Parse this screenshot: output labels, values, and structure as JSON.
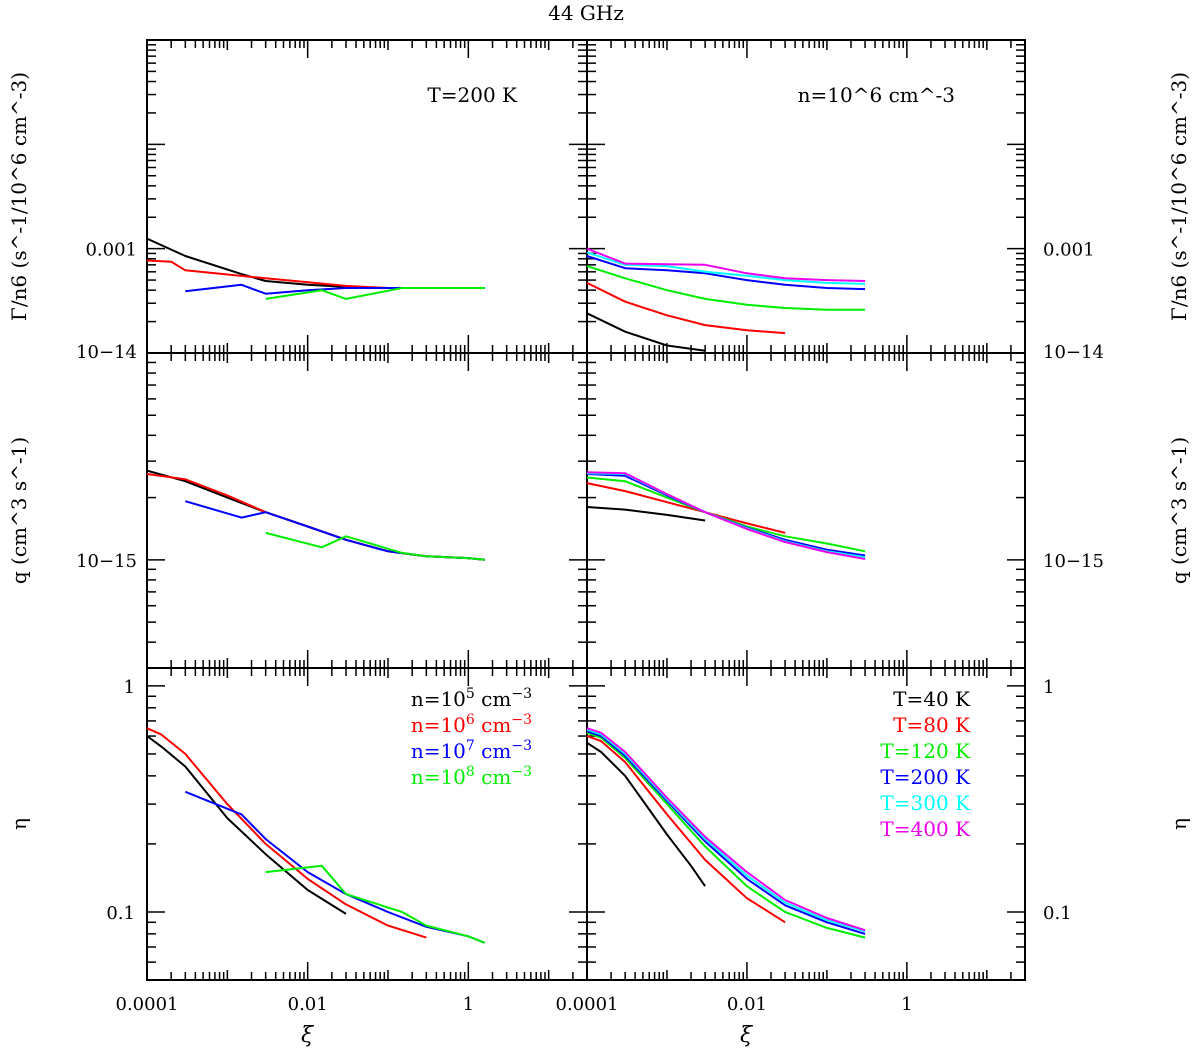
{
  "figure_title": "44 GHz",
  "chart_data": [
    {
      "type": "line",
      "panel": "top-left",
      "annotation": "T=200 K",
      "ylabel": "Γ/n6 (s^-1/10^6 cm^-3)",
      "ytick_labels": [
        "0.001",
        "10−14"
      ],
      "yscale": "log",
      "xscale": "log",
      "xlim": [
        0.0001,
        30
      ],
      "ylim": [
        0.0001,
        0.1
      ],
      "series": [
        {
          "name": "n=10^5 cm^-3",
          "color": "#000000",
          "x": [
            0.0001,
            0.0003,
            0.0015,
            0.003,
            0.01,
            0.03,
            0.1,
            0.3,
            1,
            1.6
          ],
          "y": [
            0.00125,
            0.00085,
            0.00057,
            0.00049,
            0.00045,
            0.00043,
            0.00042,
            0.00042,
            0.00042,
            0.00042
          ]
        },
        {
          "name": "n=10^6 cm^-3",
          "color": "#ff0000",
          "x": [
            0.0001,
            0.0002,
            0.0003,
            0.003,
            0.03,
            0.1,
            1,
            1.6
          ],
          "y": [
            0.00077,
            0.00075,
            0.00062,
            0.00052,
            0.00044,
            0.00042,
            0.00042,
            0.00042
          ]
        },
        {
          "name": "n=10^7 cm^-3",
          "color": "#0000ff",
          "x": [
            0.0003,
            0.0015,
            0.003,
            0.01,
            0.03,
            0.1,
            0.3,
            1,
            1.6
          ],
          "y": [
            0.00039,
            0.00045,
            0.00037,
            0.0004,
            0.00042,
            0.00042,
            0.00042,
            0.00042,
            0.00042
          ]
        },
        {
          "name": "n=10^8 cm^-3",
          "color": "#00ee00",
          "x": [
            0.003,
            0.015,
            0.03,
            0.15,
            0.3,
            1,
            1.6
          ],
          "y": [
            0.00033,
            0.0004,
            0.00033,
            0.00042,
            0.00042,
            0.00042,
            0.00042
          ]
        }
      ]
    },
    {
      "type": "line",
      "panel": "top-right",
      "annotation": "n=10^6 cm^-3",
      "ylabel": "Γ/n6 (s^-1/10^6 cm^-3)",
      "ytick_labels": [
        "0.001",
        "10−14"
      ],
      "yscale": "log",
      "xscale": "log",
      "xlim": [
        0.0001,
        30
      ],
      "ylim": [
        0.0001,
        0.1
      ],
      "series": [
        {
          "name": "T=40 K",
          "color": "#000000",
          "x": [
            0.0001,
            0.0003,
            0.001,
            0.003
          ],
          "y": [
            0.00024,
            0.00016,
            0.000118,
            0.000105
          ]
        },
        {
          "name": "T=80 K",
          "color": "#ff0000",
          "x": [
            0.0001,
            0.0003,
            0.001,
            0.003,
            0.01,
            0.03
          ],
          "y": [
            0.00047,
            0.00031,
            0.00023,
            0.000185,
            0.000165,
            0.000155
          ]
        },
        {
          "name": "T=120 K",
          "color": "#00ee00",
          "x": [
            0.0001,
            0.0003,
            0.001,
            0.003,
            0.01,
            0.03,
            0.1,
            0.3
          ],
          "y": [
            0.00068,
            0.00052,
            0.0004,
            0.00033,
            0.00029,
            0.00027,
            0.00026,
            0.00026
          ]
        },
        {
          "name": "T=200 K",
          "color": "#0000ff",
          "x": [
            0.0001,
            0.0003,
            0.001,
            0.003,
            0.01,
            0.03,
            0.1,
            0.3
          ],
          "y": [
            0.00085,
            0.00065,
            0.00062,
            0.00058,
            0.0005,
            0.00045,
            0.00042,
            0.00041
          ]
        },
        {
          "name": "T=300 K",
          "color": "#00ffff",
          "x": [
            0.0001,
            0.0003,
            0.001,
            0.003,
            0.01,
            0.03,
            0.1,
            0.3
          ],
          "y": [
            0.00092,
            0.0007,
            0.00068,
            0.0006,
            0.00055,
            0.0005,
            0.00047,
            0.00046
          ]
        },
        {
          "name": "T=400 K",
          "color": "#ee00ee",
          "x": [
            0.0001,
            0.0003,
            0.001,
            0.003,
            0.01,
            0.03,
            0.1,
            0.3
          ],
          "y": [
            0.001,
            0.00072,
            0.00071,
            0.0007,
            0.00058,
            0.00052,
            0.0005,
            0.00049
          ]
        }
      ]
    },
    {
      "type": "line",
      "panel": "middle-left",
      "ylabel": "q (cm^3 s^-1)",
      "ytick_labels": [
        "10−15"
      ],
      "yscale": "log",
      "xscale": "log",
      "xlim": [
        0.0001,
        30
      ],
      "ylim": [
        3e-16,
        1e-14
      ],
      "series": [
        {
          "name": "n=10^5 cm^-3",
          "color": "#000000",
          "x": [
            0.0001,
            0.0003,
            0.001,
            0.003,
            0.01,
            0.03,
            0.1,
            0.3,
            1,
            1.6
          ],
          "y": [
            2.7e-15,
            2.4e-15,
            2e-15,
            1.7e-15,
            1.45e-15,
            1.25e-15,
            1.1e-15,
            1.04e-15,
            1.02e-15,
            1e-15
          ]
        },
        {
          "name": "n=10^6 cm^-3",
          "color": "#ff0000",
          "x": [
            0.0001,
            0.0003,
            0.001,
            0.003,
            0.01,
            0.03,
            0.1,
            0.3,
            1,
            1.6
          ],
          "y": [
            2.6e-15,
            2.45e-15,
            2.05e-15,
            1.7e-15,
            1.45e-15,
            1.25e-15,
            1.1e-15,
            1.04e-15,
            1.02e-15,
            1e-15
          ]
        },
        {
          "name": "n=10^7 cm^-3",
          "color": "#0000ff",
          "x": [
            0.0003,
            0.0015,
            0.003,
            0.01,
            0.03,
            0.1,
            0.3,
            1,
            1.6
          ],
          "y": [
            1.92e-15,
            1.6e-15,
            1.7e-15,
            1.45e-15,
            1.25e-15,
            1.1e-15,
            1.04e-15,
            1.02e-15,
            1e-15
          ]
        },
        {
          "name": "n=10^8 cm^-3",
          "color": "#00ee00",
          "x": [
            0.003,
            0.015,
            0.03,
            0.15,
            0.3,
            1,
            1.6
          ],
          "y": [
            1.35e-15,
            1.15e-15,
            1.3e-15,
            1.08e-15,
            1.04e-15,
            1.02e-15,
            1e-15
          ]
        }
      ]
    },
    {
      "type": "line",
      "panel": "middle-right",
      "ylabel": "q (cm^3 s^-1)",
      "ytick_labels": [
        "10−15"
      ],
      "yscale": "log",
      "xscale": "log",
      "xlim": [
        0.0001,
        30
      ],
      "ylim": [
        3e-16,
        1e-14
      ],
      "series": [
        {
          "name": "T=40 K",
          "color": "#000000",
          "x": [
            0.0001,
            0.0003,
            0.001,
            0.003
          ],
          "y": [
            1.8e-15,
            1.75e-15,
            1.65e-15,
            1.55e-15
          ]
        },
        {
          "name": "T=80 K",
          "color": "#ff0000",
          "x": [
            0.0001,
            0.0003,
            0.001,
            0.003,
            0.01,
            0.03
          ],
          "y": [
            2.35e-15,
            2.15e-15,
            1.9e-15,
            1.7e-15,
            1.5e-15,
            1.35e-15
          ]
        },
        {
          "name": "T=120 K",
          "color": "#00ee00",
          "x": [
            0.0001,
            0.0003,
            0.001,
            0.003,
            0.01,
            0.03,
            0.1,
            0.3
          ],
          "y": [
            2.5e-15,
            2.4e-15,
            2e-15,
            1.7e-15,
            1.45e-15,
            1.3e-15,
            1.2e-15,
            1.1e-15
          ]
        },
        {
          "name": "T=200 K",
          "color": "#0000ff",
          "x": [
            0.0001,
            0.0003,
            0.001,
            0.003,
            0.01,
            0.03,
            0.1,
            0.3
          ],
          "y": [
            2.6e-15,
            2.55e-15,
            2.05e-15,
            1.7e-15,
            1.43e-15,
            1.25e-15,
            1.12e-15,
            1.05e-15
          ]
        },
        {
          "name": "T=300 K",
          "color": "#00ffff",
          "x": [
            0.0001,
            0.0003,
            0.001,
            0.003,
            0.01,
            0.03,
            0.1,
            0.3
          ],
          "y": [
            2.62e-15,
            2.6e-15,
            2.07e-15,
            1.7e-15,
            1.42e-15,
            1.23e-15,
            1.1e-15,
            1.03e-15
          ]
        },
        {
          "name": "T=400 K",
          "color": "#ee00ee",
          "x": [
            0.0001,
            0.0003,
            0.001,
            0.003,
            0.01,
            0.03,
            0.1,
            0.3
          ],
          "y": [
            2.65e-15,
            2.62e-15,
            2.08e-15,
            1.7e-15,
            1.41e-15,
            1.22e-15,
            1.09e-15,
            1.01e-15
          ]
        }
      ]
    },
    {
      "type": "line",
      "panel": "bottom-left",
      "ylabel": "η",
      "xlabel": "ξ",
      "ytick_labels": [
        "1",
        "0.1"
      ],
      "xtick_labels": [
        "0.0001",
        "0.01",
        "1"
      ],
      "yscale": "log",
      "xscale": "log",
      "xlim": [
        0.0001,
        30
      ],
      "ylim": [
        0.05,
        1.2
      ],
      "legend": [
        {
          "label": "n=10",
          "sup": "5",
          "unit": " cm",
          "unit_sup": "−3",
          "color": "#000000"
        },
        {
          "label": "n=10",
          "sup": "6",
          "unit": " cm",
          "unit_sup": "−3",
          "color": "#ff0000"
        },
        {
          "label": "n=10",
          "sup": "7",
          "unit": " cm",
          "unit_sup": "−3",
          "color": "#0000ff"
        },
        {
          "label": "n=10",
          "sup": "8",
          "unit": " cm",
          "unit_sup": "−3",
          "color": "#00ee00"
        }
      ],
      "series": [
        {
          "name": "n=10^5 cm^-3",
          "color": "#000000",
          "x": [
            0.0001,
            0.00015,
            0.0003,
            0.001,
            0.003,
            0.01,
            0.03
          ],
          "y": [
            0.6,
            0.54,
            0.44,
            0.26,
            0.18,
            0.125,
            0.098
          ]
        },
        {
          "name": "n=10^6 cm^-3",
          "color": "#ff0000",
          "x": [
            0.0001,
            0.00015,
            0.0003,
            0.001,
            0.003,
            0.01,
            0.03,
            0.1,
            0.3
          ],
          "y": [
            0.65,
            0.61,
            0.5,
            0.3,
            0.2,
            0.14,
            0.108,
            0.087,
            0.077
          ]
        },
        {
          "name": "n=10^7 cm^-3",
          "color": "#0000ff",
          "x": [
            0.0003,
            0.0015,
            0.003,
            0.01,
            0.03,
            0.1,
            0.3,
            1,
            1.6
          ],
          "y": [
            0.34,
            0.27,
            0.21,
            0.15,
            0.12,
            0.1,
            0.086,
            0.078,
            0.073
          ]
        },
        {
          "name": "n=10^8 cm^-3",
          "color": "#00ee00",
          "x": [
            0.003,
            0.015,
            0.03,
            0.15,
            0.3,
            1,
            1.6
          ],
          "y": [
            0.15,
            0.16,
            0.12,
            0.1,
            0.087,
            0.078,
            0.073
          ]
        }
      ]
    },
    {
      "type": "line",
      "panel": "bottom-right",
      "ylabel": "η",
      "xlabel": "ξ",
      "ytick_labels": [
        "1",
        "0.1"
      ],
      "xtick_labels": [
        "0.0001",
        "0.01",
        "1"
      ],
      "yscale": "log",
      "xscale": "log",
      "xlim": [
        0.0001,
        30
      ],
      "ylim": [
        0.05,
        1.2
      ],
      "legend": [
        {
          "label": "T=40 K",
          "color": "#000000"
        },
        {
          "label": "T=80 K",
          "color": "#ff0000"
        },
        {
          "label": "T=120 K",
          "color": "#00ee00"
        },
        {
          "label": "T=200 K",
          "color": "#0000ff"
        },
        {
          "label": "T=300 K",
          "color": "#00ffff"
        },
        {
          "label": "T=400 K",
          "color": "#ee00ee"
        }
      ],
      "series": [
        {
          "name": "T=40 K",
          "color": "#000000",
          "x": [
            0.0001,
            0.00015,
            0.0003,
            0.001,
            0.002,
            0.003
          ],
          "y": [
            0.56,
            0.51,
            0.4,
            0.22,
            0.16,
            0.13
          ]
        },
        {
          "name": "T=80 K",
          "color": "#ff0000",
          "x": [
            0.0001,
            0.00015,
            0.0003,
            0.001,
            0.003,
            0.01,
            0.03
          ],
          "y": [
            0.6,
            0.57,
            0.46,
            0.27,
            0.17,
            0.115,
            0.09
          ]
        },
        {
          "name": "T=120 K",
          "color": "#00ee00",
          "x": [
            0.0001,
            0.00015,
            0.0003,
            0.001,
            0.003,
            0.01,
            0.03,
            0.1,
            0.3
          ],
          "y": [
            0.62,
            0.59,
            0.48,
            0.3,
            0.195,
            0.13,
            0.1,
            0.085,
            0.077
          ]
        },
        {
          "name": "T=200 K",
          "color": "#0000ff",
          "x": [
            0.0001,
            0.00015,
            0.0003,
            0.001,
            0.003,
            0.01,
            0.03,
            0.1,
            0.3
          ],
          "y": [
            0.63,
            0.6,
            0.49,
            0.31,
            0.205,
            0.14,
            0.107,
            0.09,
            0.08
          ]
        },
        {
          "name": "T=300 K",
          "color": "#00ffff",
          "x": [
            0.0001,
            0.00015,
            0.0003,
            0.001,
            0.003,
            0.01,
            0.03,
            0.1,
            0.3
          ],
          "y": [
            0.64,
            0.61,
            0.5,
            0.315,
            0.21,
            0.145,
            0.11,
            0.092,
            0.082
          ]
        },
        {
          "name": "T=400 K",
          "color": "#ee00ee",
          "x": [
            0.0001,
            0.00015,
            0.0003,
            0.001,
            0.003,
            0.01,
            0.03,
            0.1,
            0.3
          ],
          "y": [
            0.65,
            0.62,
            0.51,
            0.32,
            0.215,
            0.15,
            0.113,
            0.094,
            0.083
          ]
        }
      ]
    }
  ]
}
